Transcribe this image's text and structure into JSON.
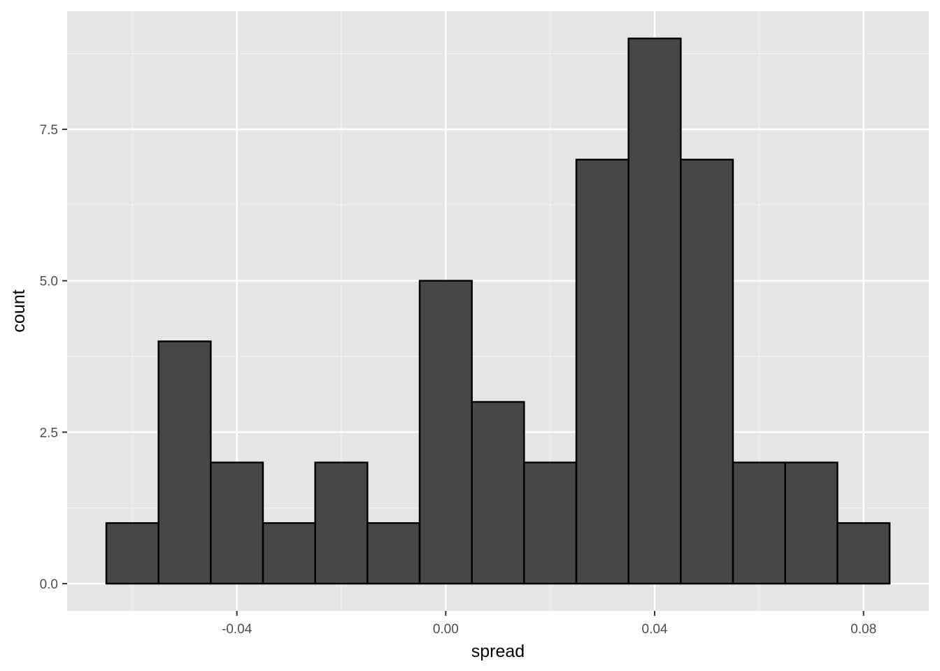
{
  "chart_data": {
    "type": "bar",
    "subtype": "histogram",
    "title": "",
    "xlabel": "spread",
    "ylabel": "count",
    "bin_width": 0.01,
    "bins": [
      {
        "x0": -0.065,
        "x1": -0.055,
        "count": 1
      },
      {
        "x0": -0.055,
        "x1": -0.045,
        "count": 4
      },
      {
        "x0": -0.045,
        "x1": -0.035,
        "count": 2
      },
      {
        "x0": -0.035,
        "x1": -0.025,
        "count": 1
      },
      {
        "x0": -0.025,
        "x1": -0.015,
        "count": 2
      },
      {
        "x0": -0.015,
        "x1": -0.005,
        "count": 1
      },
      {
        "x0": -0.005,
        "x1": 0.005,
        "count": 5
      },
      {
        "x0": 0.005,
        "x1": 0.015,
        "count": 3
      },
      {
        "x0": 0.015,
        "x1": 0.025,
        "count": 2
      },
      {
        "x0": 0.025,
        "x1": 0.035,
        "count": 7
      },
      {
        "x0": 0.035,
        "x1": 0.045,
        "count": 9
      },
      {
        "x0": 0.045,
        "x1": 0.055,
        "count": 7
      },
      {
        "x0": 0.055,
        "x1": 0.065,
        "count": 2
      },
      {
        "x0": 0.065,
        "x1": 0.075,
        "count": 2
      },
      {
        "x0": 0.075,
        "x1": 0.085,
        "count": 1
      }
    ],
    "xlim": [
      -0.0725,
      0.0925
    ],
    "ylim": [
      -0.45,
      9.45
    ],
    "x_ticks": [
      {
        "value": -0.04,
        "label": "-0.04"
      },
      {
        "value": 0.0,
        "label": "0.00"
      },
      {
        "value": 0.04,
        "label": "0.04"
      },
      {
        "value": 0.08,
        "label": "0.08"
      }
    ],
    "y_ticks": [
      {
        "value": 0.0,
        "label": "0.0"
      },
      {
        "value": 2.5,
        "label": "2.5"
      },
      {
        "value": 5.0,
        "label": "5.0"
      },
      {
        "value": 7.5,
        "label": "7.5"
      }
    ],
    "x_minor": [
      -0.06,
      -0.02,
      0.02,
      0.06
    ],
    "y_minor": [
      1.25,
      3.75,
      6.25,
      8.75
    ],
    "grid": true,
    "legend": "none",
    "colors": {
      "panel": "#e5e5e5",
      "grid_major": "#ffffff",
      "grid_minor": "#f2f2f2",
      "bar_fill": "#474747",
      "bar_stroke": "#000000",
      "tick": "#333333"
    }
  }
}
